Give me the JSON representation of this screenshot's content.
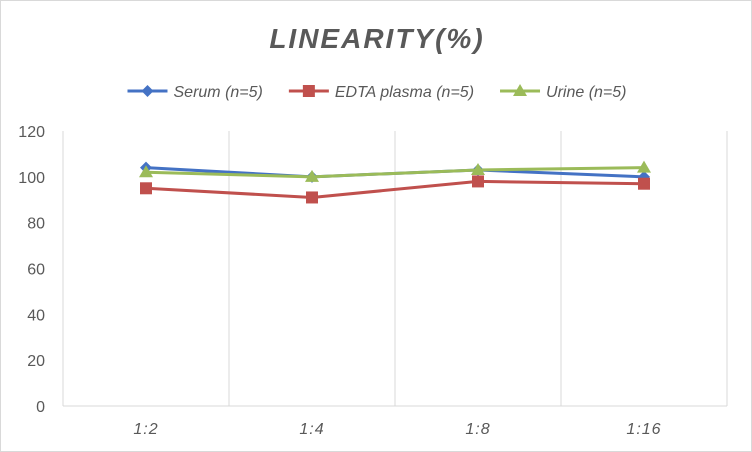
{
  "chart_data": {
    "type": "line",
    "title": "LINEARITY(%)",
    "categories": [
      "1:2",
      "1:4",
      "1:8",
      "1:16"
    ],
    "series": [
      {
        "name": "Serum (n=5)",
        "values": [
          104,
          100,
          103,
          100
        ],
        "color": "#4472c4",
        "marker": "diamond"
      },
      {
        "name": "EDTA plasma (n=5)",
        "values": [
          95,
          91,
          98,
          97
        ],
        "color": "#c0504d",
        "marker": "square"
      },
      {
        "name": "Urine (n=5)",
        "values": [
          102,
          100,
          103,
          104
        ],
        "color": "#9bbb59",
        "marker": "triangle"
      }
    ],
    "yticks": [
      "0",
      "20",
      "40",
      "60",
      "80",
      "100",
      "120"
    ],
    "ylim": [
      0,
      120
    ],
    "grid": "vertical",
    "legend_position": "top"
  }
}
